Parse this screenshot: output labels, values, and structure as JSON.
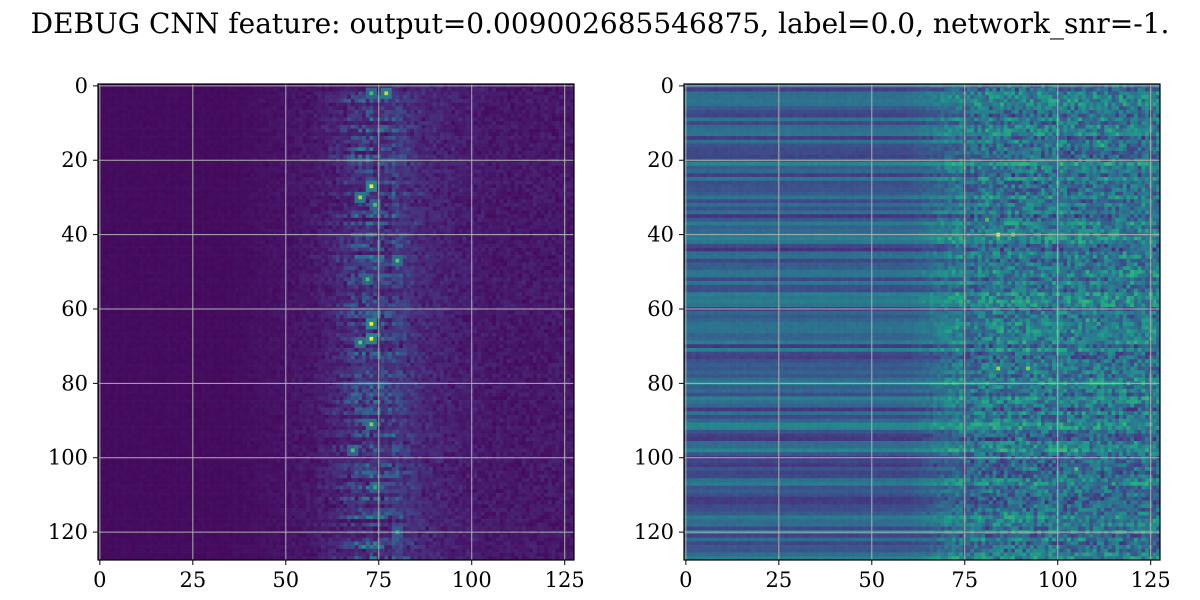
{
  "chart_data": {
    "title": "DEBUG CNN feature: output=0.009002685546875, label=0.0, network_snr=-1.",
    "panels": [
      {
        "type": "heatmap",
        "name": "left",
        "shape": [
          128,
          128
        ],
        "colormap": "viridis",
        "xlim": [
          0,
          127
        ],
        "ylim": [
          127,
          0
        ],
        "xticks": [
          0,
          25,
          50,
          75,
          100,
          125
        ],
        "yticks": [
          0,
          20,
          40,
          60,
          80,
          100,
          120
        ],
        "xtick_labels": [
          "0",
          "25",
          "50",
          "75",
          "100",
          "125"
        ],
        "ytick_labels": [
          "0",
          "20",
          "40",
          "60",
          "80",
          "100",
          "120"
        ],
        "grid": true,
        "description": "Mostly dark (near 0) for columns 0-35; sparse noise 35-65; bright vertical band centred near column 73 with hot spots (yellow) at rows ~27, 30, 64, 68, 91; faint speckle extending to column ~100.",
        "hotspots": [
          {
            "x": 73,
            "y": 2,
            "v": 0.7
          },
          {
            "x": 77,
            "y": 2,
            "v": 0.9
          },
          {
            "x": 73,
            "y": 27,
            "v": 1.0
          },
          {
            "x": 70,
            "y": 30,
            "v": 0.85
          },
          {
            "x": 74,
            "y": 32,
            "v": 0.7
          },
          {
            "x": 80,
            "y": 47,
            "v": 0.75
          },
          {
            "x": 72,
            "y": 52,
            "v": 0.7
          },
          {
            "x": 73,
            "y": 64,
            "v": 1.0
          },
          {
            "x": 73,
            "y": 68,
            "v": 1.0
          },
          {
            "x": 70,
            "y": 69,
            "v": 0.75
          },
          {
            "x": 73,
            "y": 91,
            "v": 0.8
          },
          {
            "x": 68,
            "y": 98,
            "v": 0.7
          },
          {
            "x": 80,
            "y": 120,
            "v": 0.6
          },
          {
            "x": 74,
            "y": 108,
            "v": 0.6
          }
        ]
      },
      {
        "type": "heatmap",
        "name": "right",
        "shape": [
          128,
          128
        ],
        "colormap": "viridis",
        "xlim": [
          0,
          127
        ],
        "ylim": [
          127,
          0
        ],
        "xticks": [
          0,
          25,
          50,
          75,
          100,
          125
        ],
        "yticks": [
          0,
          20,
          40,
          60,
          80,
          100,
          120
        ],
        "xtick_labels": [
          "0",
          "25",
          "50",
          "75",
          "100",
          "125"
        ],
        "ytick_labels": [
          "0",
          "20",
          "40",
          "60",
          "80",
          "100",
          "120"
        ],
        "grid": true,
        "description": "Horizontal banded structure (blue to teal rows) for columns 0-70; noisy speckled region 75-127 with greenish highlights and yellow spots near (84,40) and (90,76).",
        "hotspots": [
          {
            "x": 84,
            "y": 40,
            "v": 1.0
          },
          {
            "x": 88,
            "y": 40,
            "v": 0.8
          },
          {
            "x": 81,
            "y": 36,
            "v": 0.7
          },
          {
            "x": 84,
            "y": 76,
            "v": 0.85
          },
          {
            "x": 92,
            "y": 76,
            "v": 0.8
          },
          {
            "x": 105,
            "y": 103,
            "v": 0.7
          },
          {
            "x": 112,
            "y": 16,
            "v": 0.65
          },
          {
            "x": 108,
            "y": 63,
            "v": 0.65
          },
          {
            "x": 90,
            "y": 95,
            "v": 0.6
          },
          {
            "x": 100,
            "y": 26,
            "v": 0.6
          },
          {
            "x": 86,
            "y": 115,
            "v": 0.6
          }
        ]
      }
    ]
  },
  "colors": {
    "frame": "#000000",
    "grid": "#b0b0b0",
    "background": "#ffffff"
  }
}
